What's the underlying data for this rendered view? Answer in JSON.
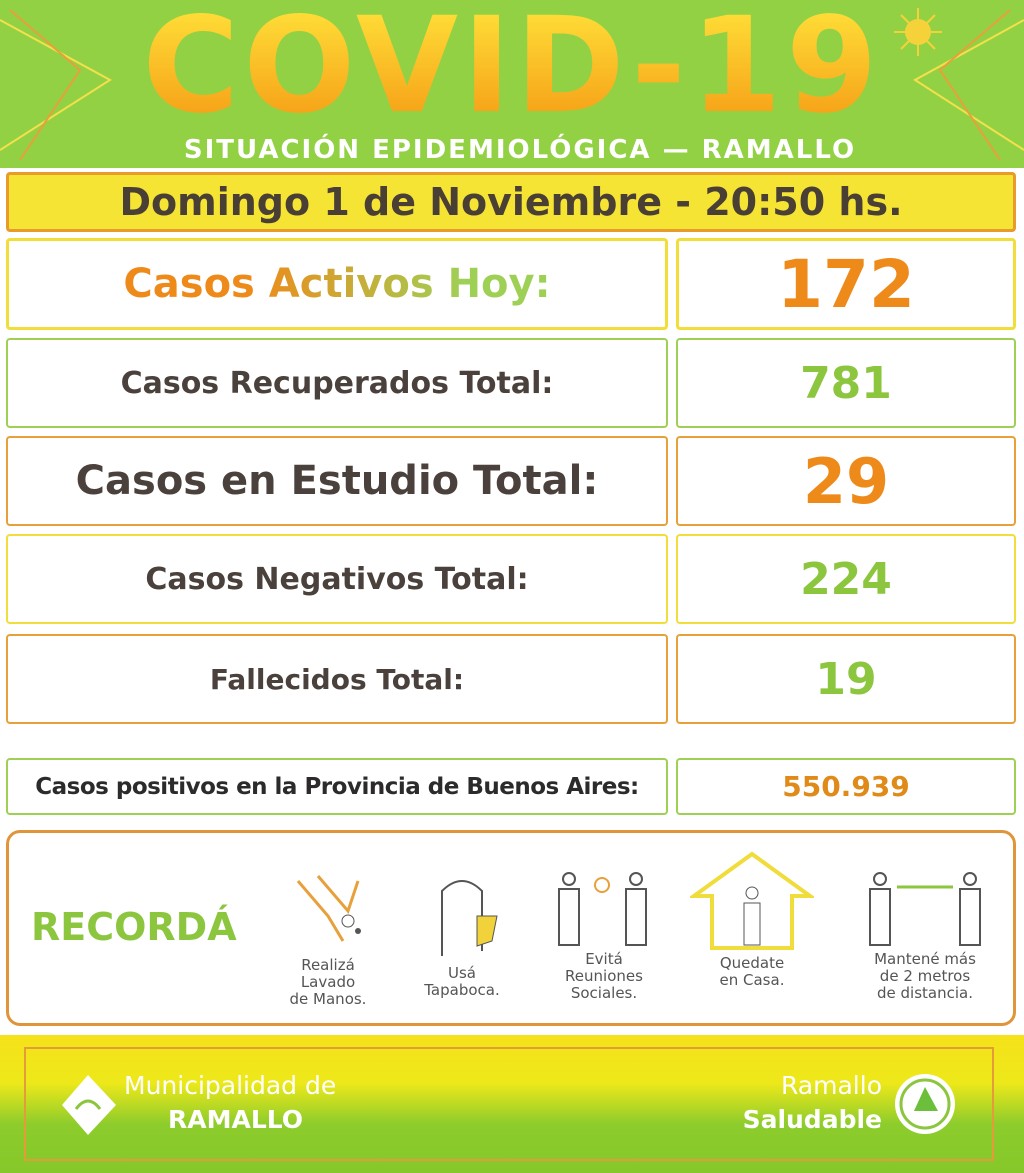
{
  "header": {
    "title": "COVID-19",
    "subtitle": "SITUACIÓN EPIDEMIOLÓGICA — RAMALLO"
  },
  "date": "Domingo 1 de Noviembre - 20:50 hs.",
  "stats": [
    {
      "label": "Casos Activos Hoy:",
      "value": "172"
    },
    {
      "label": "Casos Recuperados Total:",
      "value": "781"
    },
    {
      "label": "Casos en Estudio Total:",
      "value": "29"
    },
    {
      "label": "Casos Negativos Total:",
      "value": "224"
    },
    {
      "label": "Fallecidos Total:",
      "value": "19"
    }
  ],
  "province": {
    "label": "Casos positivos en la Provincia de Buenos Aires:",
    "value": "550.939"
  },
  "recorda": {
    "title": "RECORDÁ",
    "items": [
      {
        "icon": "hand-washing-icon",
        "lines": [
          "Realizá",
          "Lavado",
          "de Manos."
        ]
      },
      {
        "icon": "face-mask-icon",
        "lines": [
          "Usá",
          "Tapaboca."
        ]
      },
      {
        "icon": "no-gatherings-icon",
        "lines": [
          "Evitá",
          "Reuniones",
          "Sociales."
        ]
      },
      {
        "icon": "stay-home-icon",
        "lines": [
          "Quedate",
          "en Casa."
        ]
      },
      {
        "icon": "social-distance-icon",
        "lines": [
          "Mantené más",
          "de 2 metros",
          "de distancia."
        ]
      }
    ]
  },
  "footer": {
    "municipality_line1": "Municipalidad de",
    "municipality_line2": "RAMALLO",
    "brand_line1": "Ramallo",
    "brand_line2": "Saludable"
  },
  "colors": {
    "green": "#93d144",
    "orange": "#ee8a1a",
    "yellow": "#f6e434",
    "text": "#4a403c"
  }
}
